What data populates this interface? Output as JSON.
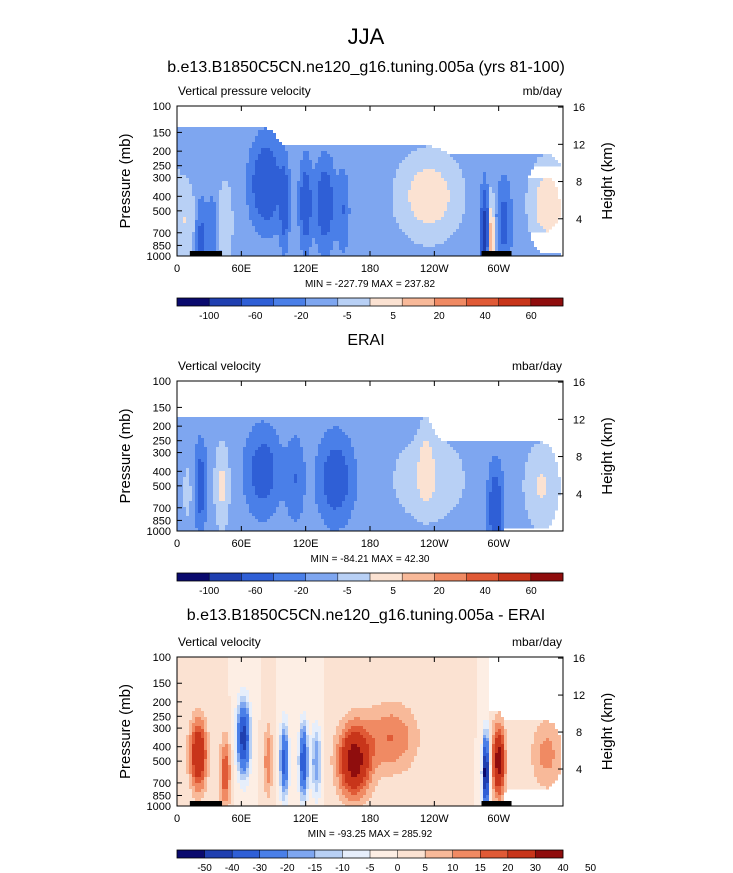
{
  "figure_title": "JJA",
  "colors": {
    "scale11": [
      "#0a0a6e",
      "#1f3fb0",
      "#2f5fd6",
      "#4a7fe8",
      "#7ea6f0",
      "#b8d0f5",
      "#fbe2d2",
      "#f8b999",
      "#f08a63",
      "#e05a36",
      "#c8351a",
      "#8f0d0d"
    ],
    "scale13": [
      "#0a0a6e",
      "#1f3fb0",
      "#2f5fd6",
      "#4a7fe8",
      "#7ea6f0",
      "#b8d0f5",
      "#e6eefb",
      "#fdeee4",
      "#fbe2d2",
      "#f8b999",
      "#f08a63",
      "#e05a36",
      "#c8351a",
      "#8f0d0d"
    ],
    "land": "#000000"
  },
  "chart_data": [
    {
      "type": "heatmap",
      "title": "b.e13.B1850C5CN.ne120_g16.tuning.005a (yrs 81-100)",
      "left_label": "Vertical pressure velocity",
      "units": "mb/day",
      "ylabel": "Pressure (mb)",
      "ylabel_right": "Height (km)",
      "x_ticks": [
        "0",
        "60E",
        "120E",
        "180",
        "120W",
        "60W"
      ],
      "x_tick_values": [
        0,
        60,
        120,
        180,
        240,
        300
      ],
      "xlim": [
        0,
        360
      ],
      "y_ticks": [
        "100",
        "150",
        "200",
        "250",
        "300",
        "400",
        "500",
        "700",
        "850",
        "1000"
      ],
      "y_tick_values": [
        100,
        150,
        200,
        250,
        300,
        400,
        500,
        700,
        850,
        1000
      ],
      "ylim": [
        100,
        1000
      ],
      "yscale": "log",
      "right_ticks": [
        "16",
        "12",
        "8",
        "4"
      ],
      "right_tick_values": [
        16,
        12,
        8,
        4
      ],
      "stats_text": "MIN = -227.79  MAX = 237.82",
      "colorbar_labels": [
        "-100",
        "-60",
        "-20",
        "-5",
        "5",
        "20",
        "40",
        "60"
      ],
      "colorbar_bins": 12,
      "features": [
        {
          "lon": 8,
          "w": 10,
          "p": 600,
          "v": 18
        },
        {
          "lon": 22,
          "w": 5,
          "p": 800,
          "v": -30
        },
        {
          "lon": 33,
          "w": 5,
          "p": 700,
          "v": -15
        },
        {
          "lon": 45,
          "w": 6,
          "p": 600,
          "v": 20
        },
        {
          "lon": 83,
          "w": 12,
          "p": 330,
          "v": -55
        },
        {
          "lon": 100,
          "w": 4,
          "p": 450,
          "v": -40
        },
        {
          "lon": 120,
          "w": 5,
          "p": 450,
          "v": -45
        },
        {
          "lon": 138,
          "w": 8,
          "p": 450,
          "v": -45
        },
        {
          "lon": 155,
          "w": 5,
          "p": 500,
          "v": -20
        },
        {
          "lon": 235,
          "w": 25,
          "p": 400,
          "v": 35
        },
        {
          "lon": 287,
          "w": 3,
          "p": 700,
          "v": -90
        },
        {
          "lon": 293,
          "w": 3,
          "p": 800,
          "v": 60
        },
        {
          "lon": 305,
          "w": 6,
          "p": 600,
          "v": -30
        },
        {
          "lon": 345,
          "w": 14,
          "p": 450,
          "v": 35
        }
      ],
      "land_segments": [
        [
          12,
          42
        ],
        [
          284,
          312
        ]
      ]
    },
    {
      "type": "heatmap",
      "title": "ERAI",
      "left_label": "Vertical velocity",
      "units": "mbar/day",
      "ylabel": "Pressure (mb)",
      "ylabel_right": "Height (km)",
      "x_ticks": [
        "0",
        "60E",
        "120E",
        "180",
        "120W",
        "60W"
      ],
      "x_tick_values": [
        0,
        60,
        120,
        180,
        240,
        300
      ],
      "xlim": [
        0,
        360
      ],
      "y_ticks": [
        "100",
        "150",
        "200",
        "250",
        "300",
        "400",
        "500",
        "700",
        "850",
        "1000"
      ],
      "y_tick_values": [
        100,
        150,
        200,
        250,
        300,
        400,
        500,
        700,
        850,
        1000
      ],
      "ylim": [
        100,
        1000
      ],
      "yscale": "log",
      "right_ticks": [
        "16",
        "12",
        "8",
        "4"
      ],
      "right_tick_values": [
        16,
        12,
        8,
        4
      ],
      "stats_text": "MIN = -84.21  MAX = 42.30",
      "colorbar_labels": [
        "-100",
        "-60",
        "-20",
        "-5",
        "5",
        "20",
        "40",
        "60"
      ],
      "colorbar_bins": 12,
      "features": [
        {
          "lon": 10,
          "w": 5,
          "p": 550,
          "v": 8
        },
        {
          "lon": 22,
          "w": 5,
          "p": 500,
          "v": -35
        },
        {
          "lon": 42,
          "w": 6,
          "p": 500,
          "v": 25
        },
        {
          "lon": 80,
          "w": 14,
          "p": 400,
          "v": -35
        },
        {
          "lon": 110,
          "w": 8,
          "p": 450,
          "v": -20
        },
        {
          "lon": 148,
          "w": 14,
          "p": 450,
          "v": -40
        },
        {
          "lon": 235,
          "w": 28,
          "p": 450,
          "v": 20
        },
        {
          "lon": 232,
          "w": 6,
          "p": 350,
          "v": 22
        },
        {
          "lon": 297,
          "w": 6,
          "p": 700,
          "v": -45
        },
        {
          "lon": 340,
          "w": 14,
          "p": 500,
          "v": 22
        }
      ],
      "land_segments": []
    },
    {
      "type": "heatmap",
      "title": "b.e13.B1850C5CN.ne120_g16.tuning.005a - ERAI",
      "left_label": "Vertical velocity",
      "units": "mbar/day",
      "ylabel": "Pressure (mb)",
      "ylabel_right": "Height (km)",
      "x_ticks": [
        "0",
        "60E",
        "120E",
        "180",
        "120W",
        "60W"
      ],
      "x_tick_values": [
        0,
        60,
        120,
        180,
        240,
        300
      ],
      "xlim": [
        0,
        360
      ],
      "y_ticks": [
        "100",
        "150",
        "200",
        "250",
        "300",
        "400",
        "500",
        "700",
        "850",
        "1000"
      ],
      "y_tick_values": [
        100,
        150,
        200,
        250,
        300,
        400,
        500,
        700,
        850,
        1000
      ],
      "ylim": [
        100,
        1000
      ],
      "yscale": "log",
      "right_ticks": [
        "16",
        "12",
        "8",
        "4"
      ],
      "right_tick_values": [
        16,
        12,
        8,
        4
      ],
      "stats_text": "MIN = -93.25  MAX = 285.92",
      "colorbar_labels": [
        "-50",
        "-40",
        "-30",
        "-20",
        "-15",
        "-10",
        "-5",
        "0",
        "5",
        "10",
        "15",
        "20",
        "30",
        "40",
        "50"
      ],
      "colorbar_bins": 14,
      "features": [
        {
          "lon": 20,
          "w": 8,
          "p": 450,
          "v": 30
        },
        {
          "lon": 45,
          "w": 5,
          "p": 600,
          "v": 20
        },
        {
          "lon": 62,
          "w": 6,
          "p": 350,
          "v": -45
        },
        {
          "lon": 85,
          "w": 4,
          "p": 500,
          "v": 15
        },
        {
          "lon": 100,
          "w": 4,
          "p": 500,
          "v": -35
        },
        {
          "lon": 118,
          "w": 4,
          "p": 500,
          "v": -40
        },
        {
          "lon": 130,
          "w": 5,
          "p": 500,
          "v": -20
        },
        {
          "lon": 165,
          "w": 15,
          "p": 500,
          "v": 35
        },
        {
          "lon": 200,
          "w": 25,
          "p": 350,
          "v": 15
        },
        {
          "lon": 288,
          "w": 3,
          "p": 600,
          "v": -60
        },
        {
          "lon": 300,
          "w": 6,
          "p": 500,
          "v": 35
        },
        {
          "lon": 345,
          "w": 15,
          "p": 450,
          "v": 12
        }
      ],
      "land_segments": [
        [
          12,
          42
        ],
        [
          284,
          312
        ]
      ]
    }
  ]
}
